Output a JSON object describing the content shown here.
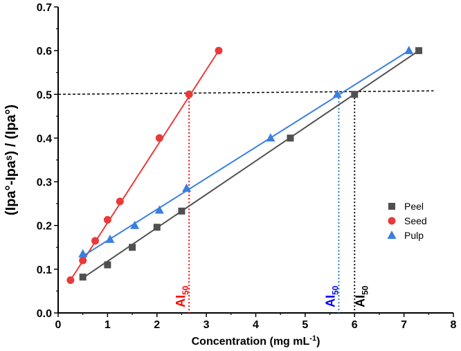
{
  "chart_data": {
    "type": "scatter",
    "xlabel": "Concentration (mg mL",
    "xlabel_sup": "-1",
    "xlabel_end": ")",
    "ylabel": "(Ipa°-Ipaˢ) / (Ipa°)",
    "xlim": [
      0,
      8
    ],
    "ylim": [
      0,
      0.7
    ],
    "xticks": [
      "0",
      "1",
      "2",
      "3",
      "4",
      "5",
      "6",
      "7",
      "8"
    ],
    "yticks": [
      "0.0",
      "0.1",
      "0.2",
      "0.3",
      "0.4",
      "0.5",
      "0.6",
      "0.7"
    ],
    "legend_position": "right",
    "series": [
      {
        "name": "Peel",
        "color": "#505050",
        "marker": "square",
        "x": [
          0.5,
          1,
          1.5,
          2,
          2.5,
          4.7,
          6,
          7.3
        ],
        "y": [
          0.082,
          0.11,
          0.15,
          0.196,
          0.233,
          0.4,
          0.5,
          0.6
        ],
        "fit": [
          [
            0.5,
            0.08
          ],
          [
            7.3,
            0.6
          ]
        ]
      },
      {
        "name": "Seed",
        "color": "#e83a3a",
        "marker": "circle",
        "x": [
          0.25,
          0.5,
          0.75,
          1,
          1.25,
          2.05,
          2.65,
          3.25
        ],
        "y": [
          0.075,
          0.12,
          0.165,
          0.213,
          0.255,
          0.4,
          0.5,
          0.6
        ],
        "fit": [
          [
            0.25,
            0.075
          ],
          [
            3.25,
            0.6
          ]
        ]
      },
      {
        "name": "Pulp",
        "color": "#3a7fe0",
        "marker": "triangle",
        "x": [
          0.5,
          1.05,
          1.55,
          2.05,
          2.6,
          4.3,
          5.65,
          7.1
        ],
        "y": [
          0.135,
          0.168,
          0.2,
          0.235,
          0.285,
          0.4,
          0.5,
          0.6
        ],
        "fit": [
          [
            0.5,
            0.13
          ],
          [
            7.1,
            0.6
          ]
        ]
      }
    ],
    "reference_line": {
      "x": [
        0,
        7.6
      ],
      "y": [
        0.5,
        0.508
      ]
    },
    "annotations": [
      {
        "text": "AI",
        "sub": "50",
        "x": 2.65,
        "color": "#ff0000",
        "line_color": "#ff0000"
      },
      {
        "text": "AI",
        "sub": "50",
        "x": 5.68,
        "color": "#0000ff",
        "line_color": "#1f77b4"
      },
      {
        "text": "AI",
        "sub": "50",
        "x": 6.0,
        "color": "#000000",
        "line_color": "#000000"
      }
    ]
  }
}
